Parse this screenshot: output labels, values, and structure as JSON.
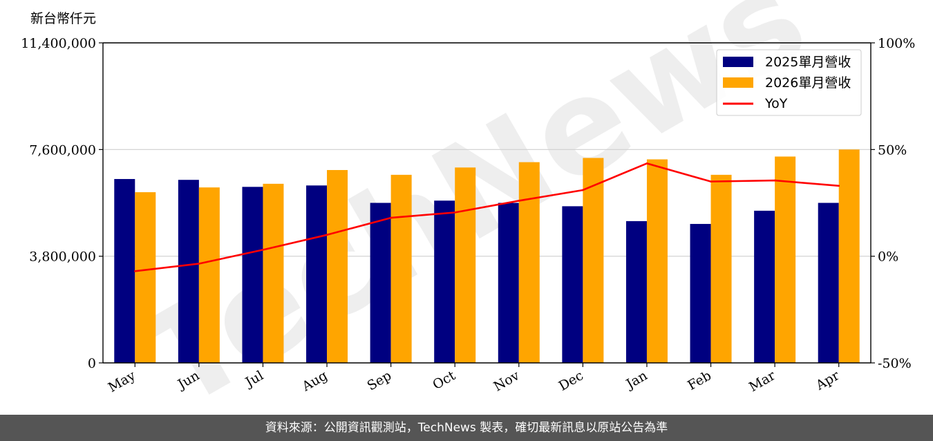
{
  "chart_data": {
    "type": "bar",
    "unit_label": "新台幣仟元",
    "watermark": "TechNews",
    "categories": [
      "May",
      "Jun",
      "Jul",
      "Aug",
      "Sep",
      "Oct",
      "Nov",
      "Dec",
      "Jan",
      "Feb",
      "Mar",
      "Apr"
    ],
    "series": [
      {
        "name": "2025單月營收",
        "color": "#000080",
        "values": [
          6550000,
          6520000,
          6270000,
          6320000,
          5700000,
          5780000,
          5700000,
          5580000,
          5050000,
          4950000,
          5420000,
          5700000
        ]
      },
      {
        "name": "2026單月營收",
        "color": "#FFA500",
        "values": [
          6080000,
          6250000,
          6380000,
          6870000,
          6700000,
          6960000,
          7150000,
          7300000,
          7250000,
          6700000,
          7350000,
          7600000
        ]
      }
    ],
    "line_series": {
      "name": "YoY",
      "color": "#FF0000",
      "values": [
        -7,
        -3.5,
        3,
        10,
        18,
        20.5,
        26,
        31,
        43.5,
        35,
        35.5,
        33
      ]
    },
    "y_left": {
      "ylim": [
        0,
        11400000
      ],
      "ticks": [
        "0",
        "3,800,000",
        "7,600,000",
        "11,400,000"
      ]
    },
    "y_right": {
      "ylim": [
        -50,
        100
      ],
      "ticks": [
        "-50%",
        "0%",
        "50%",
        "100%"
      ]
    },
    "grid": true,
    "legend_position": "top-right"
  },
  "footer": {
    "source_text": "資料來源：公開資訊觀測站，TechNews 製表，確切最新訊息以原站公告為準"
  }
}
